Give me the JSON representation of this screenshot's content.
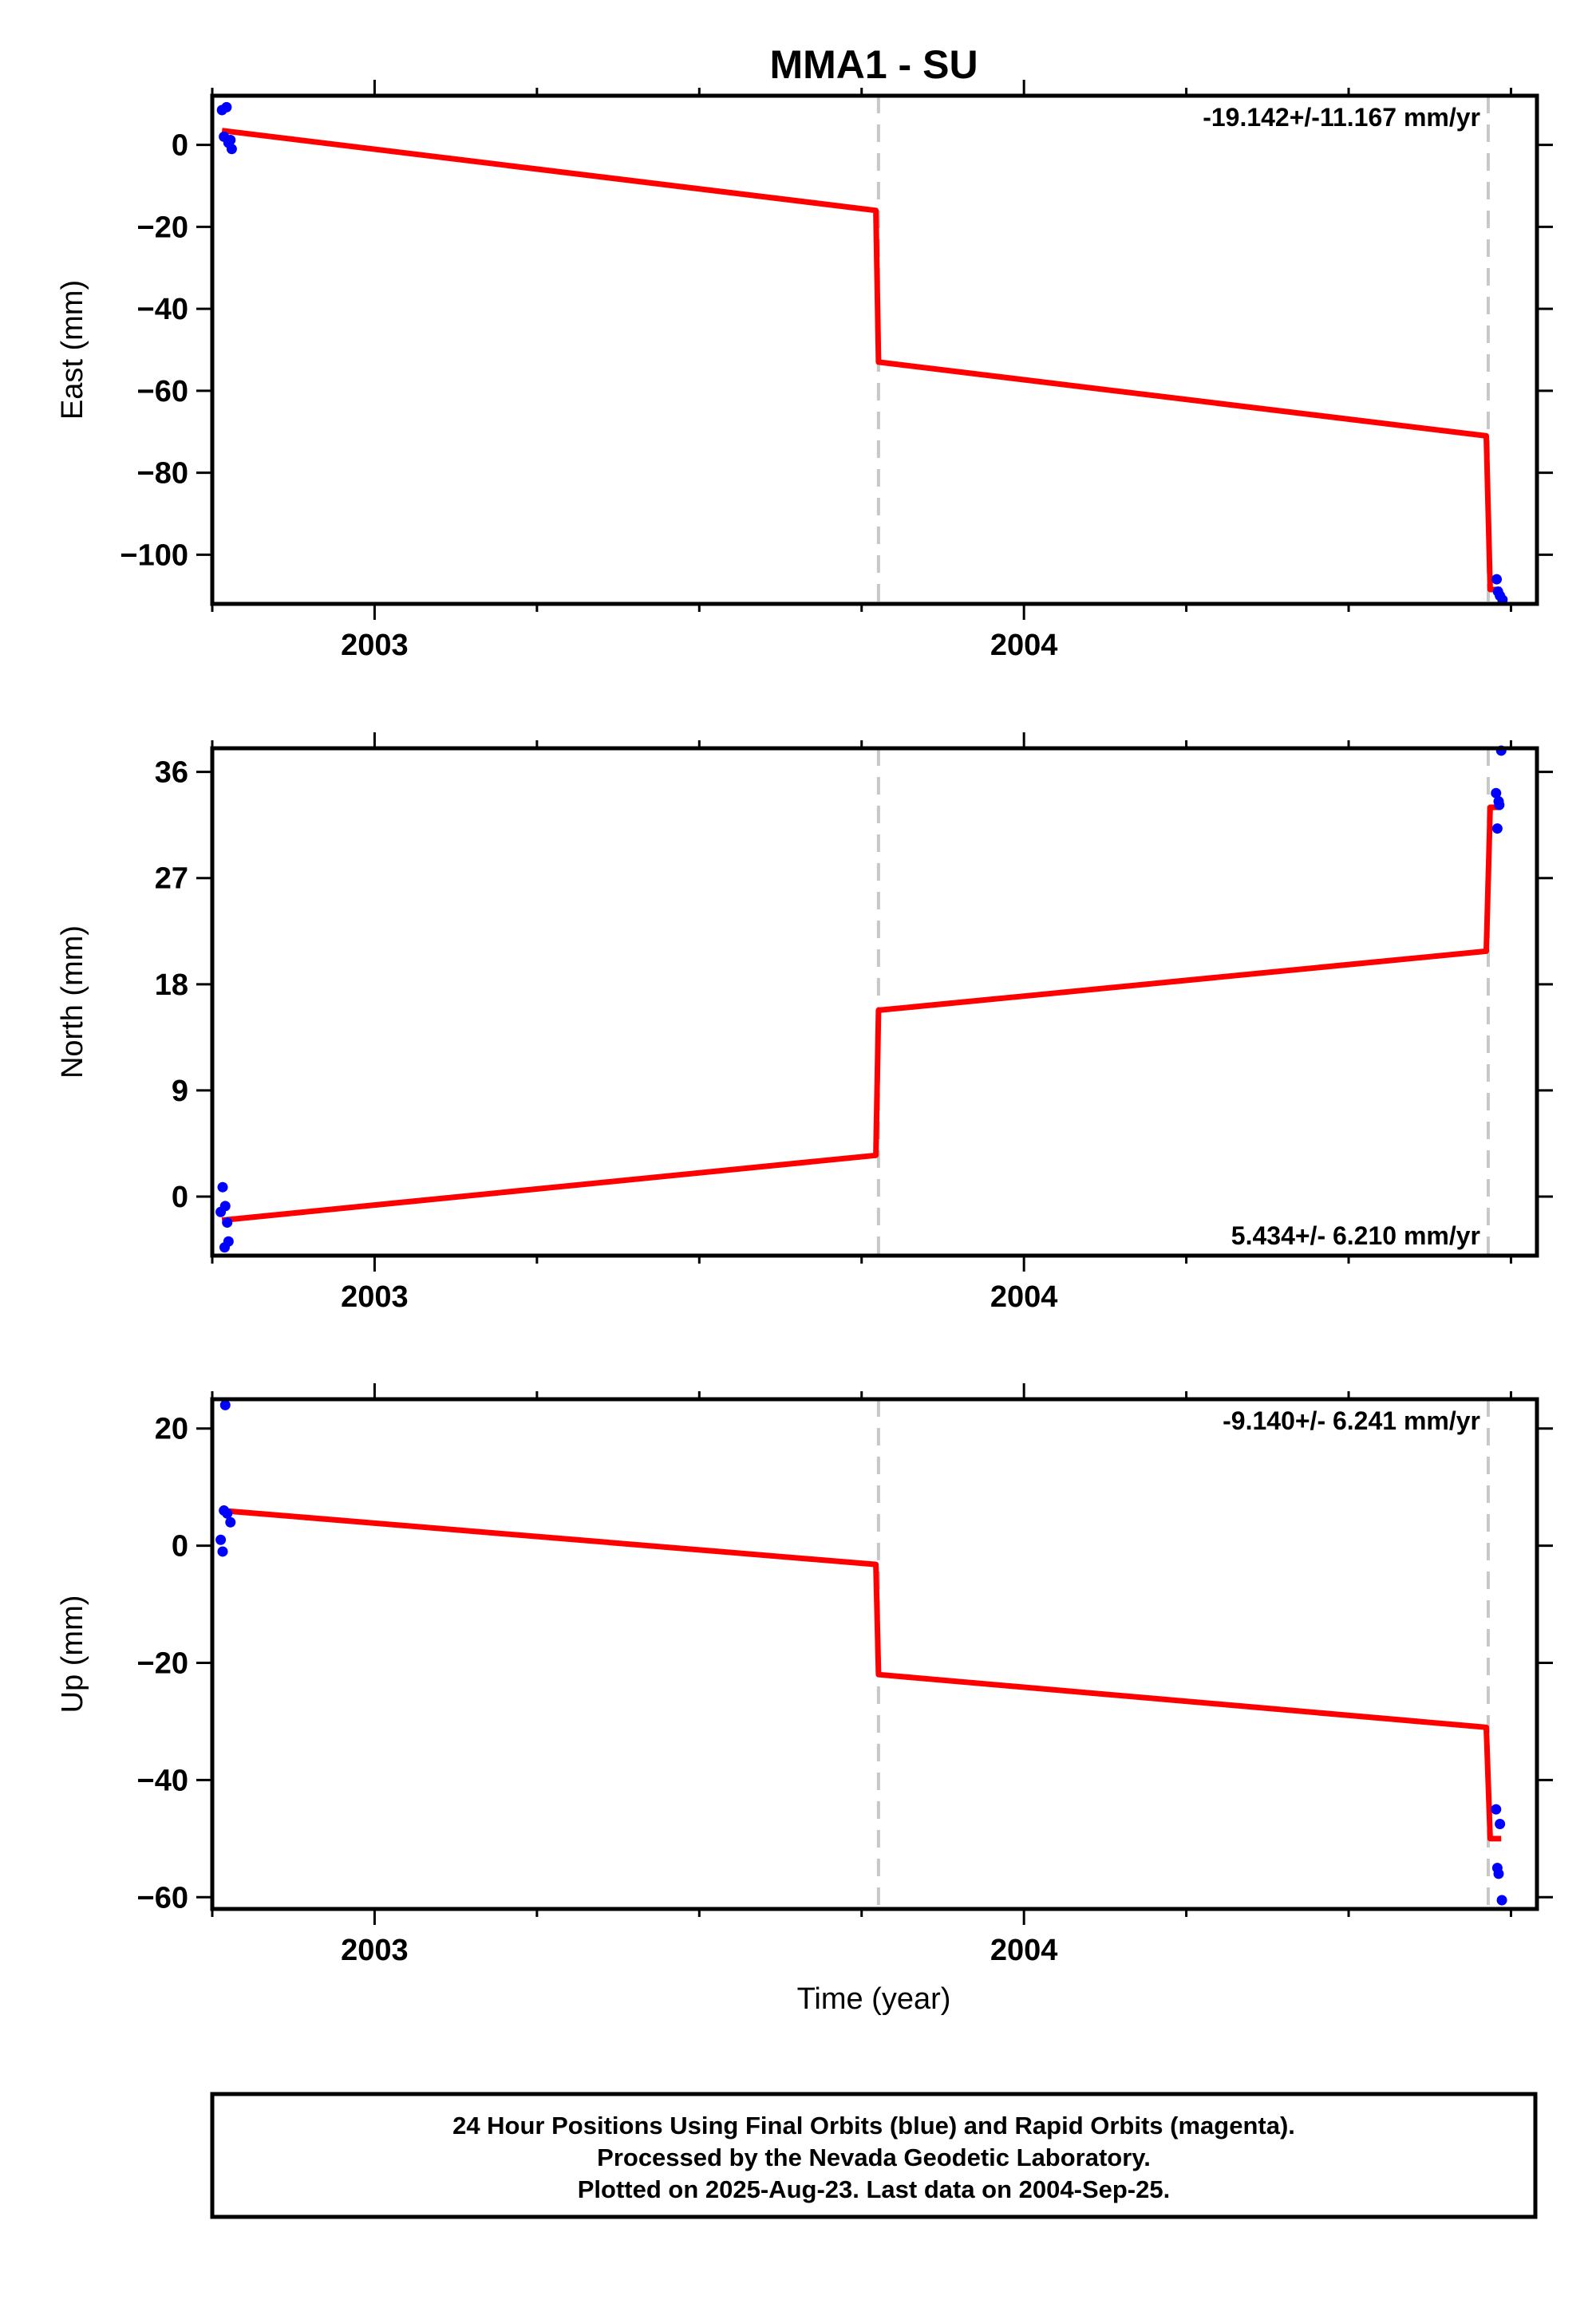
{
  "chart_data": {
    "type": "scatter",
    "title": "MMA1 - SU",
    "xlabel": "Time (year)",
    "xlim": [
      2002.75,
      2004.79
    ],
    "x_ticks": [
      2003,
      2004
    ],
    "offset_epochs": [
      2003.776,
      2004.715
    ],
    "colors": {
      "data": "#0000ff",
      "model": "#ff0000",
      "offset": "#c8c8c8"
    },
    "panels": [
      {
        "name": "east",
        "ylabel": "East (mm)",
        "ylim": [
          -112,
          12
        ],
        "y_ticks": [
          0,
          -20,
          -40,
          -60,
          -80,
          -100
        ],
        "rate_text": "-19.142+/-11.167 mm/yr",
        "rate_position": "top-right",
        "points": [
          [
            2002.765,
            8.5
          ],
          [
            2002.772,
            9.2
          ],
          [
            2002.768,
            2.0
          ],
          [
            2002.778,
            1.2
          ],
          [
            2002.78,
            -1.0
          ],
          [
            2002.775,
            0.5
          ],
          [
            2004.728,
            -106
          ],
          [
            2004.733,
            -110
          ],
          [
            2004.737,
            -111
          ],
          [
            2004.73,
            -109
          ]
        ],
        "model": [
          [
            2002.765,
            3.5
          ],
          [
            2003.772,
            -16
          ],
          [
            2003.776,
            -53
          ],
          [
            2004.712,
            -71
          ],
          [
            2004.718,
            -108.5
          ],
          [
            2004.735,
            -108.5
          ]
        ]
      },
      {
        "name": "north",
        "ylabel": "North (mm)",
        "ylim": [
          -5,
          38
        ],
        "y_ticks": [
          36,
          27,
          18,
          9,
          0
        ],
        "rate_text": "5.434+/- 6.210 mm/yr",
        "rate_position": "bottom-right",
        "points": [
          [
            2002.766,
            0.8
          ],
          [
            2002.77,
            -0.8
          ],
          [
            2002.763,
            -1.3
          ],
          [
            2002.773,
            -2.2
          ],
          [
            2002.775,
            -3.8
          ],
          [
            2002.769,
            -4.3
          ],
          [
            2004.727,
            34.2
          ],
          [
            2004.732,
            33.2
          ],
          [
            2004.735,
            37.8
          ],
          [
            2004.729,
            31.2
          ],
          [
            2004.731,
            33.5
          ]
        ],
        "model": [
          [
            2002.765,
            -2.0
          ],
          [
            2003.772,
            3.5
          ],
          [
            2003.776,
            15.8
          ],
          [
            2004.712,
            20.8
          ],
          [
            2004.718,
            33.0
          ],
          [
            2004.735,
            33.0
          ]
        ]
      },
      {
        "name": "up",
        "ylabel": "Up (mm)",
        "ylim": [
          -62,
          25
        ],
        "y_ticks": [
          20,
          0,
          -20,
          -40,
          -60
        ],
        "rate_text": "-9.140+/- 6.241 mm/yr",
        "rate_position": "top-right",
        "points": [
          [
            2002.77,
            24
          ],
          [
            2002.768,
            6.0
          ],
          [
            2002.773,
            5.5
          ],
          [
            2002.778,
            4.0
          ],
          [
            2002.763,
            1.0
          ],
          [
            2002.766,
            -1.0
          ],
          [
            2004.727,
            -45
          ],
          [
            2004.733,
            -47.5
          ],
          [
            2004.729,
            -55
          ],
          [
            2004.731,
            -56
          ],
          [
            2004.736,
            -60.5
          ]
        ],
        "model": [
          [
            2002.765,
            6.0
          ],
          [
            2003.772,
            -3.2
          ],
          [
            2003.776,
            -22
          ],
          [
            2004.712,
            -31
          ],
          [
            2004.718,
            -50
          ],
          [
            2004.735,
            -50
          ]
        ]
      }
    ]
  },
  "footer": {
    "line1": "24 Hour Positions Using Final Orbits (blue) and Rapid Orbits (magenta).",
    "line2": "Processed by the Nevada Geodetic Laboratory.",
    "line3": "Plotted on 2025-Aug-23. Last data on 2004-Sep-25."
  }
}
